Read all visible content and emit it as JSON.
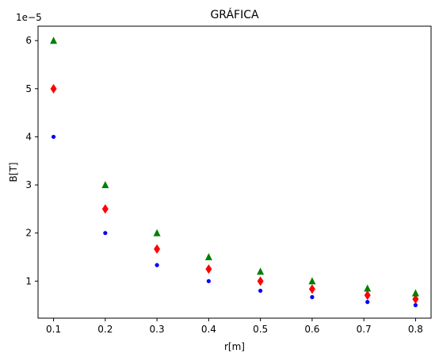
{
  "chart_data": {
    "type": "scatter",
    "title": "GRÁFICA",
    "xlabel": "r[m]",
    "ylabel": "B[T]",
    "y_offset_text": "1e−5",
    "y_scale_exponent": -5,
    "xlim": [
      0.07,
      0.83
    ],
    "ylim": [
      2.3e-06,
      6.3e-05
    ],
    "x_ticks": [
      0.1,
      0.2,
      0.3,
      0.4,
      0.5,
      0.6,
      0.7,
      0.8
    ],
    "x_tick_labels": [
      "0.1",
      "0.2",
      "0.3",
      "0.4",
      "0.5",
      "0.6",
      "0.7",
      "0.8"
    ],
    "y_ticks": [
      1e-05,
      2e-05,
      3e-05,
      4e-05,
      5e-05,
      6e-05
    ],
    "y_tick_labels": [
      "1",
      "2",
      "3",
      "4",
      "5",
      "6"
    ],
    "grid": false,
    "legend": "none",
    "series": [
      {
        "marker": "circle",
        "color": "#0000ff",
        "x": [
          0.1,
          0.2,
          0.3,
          0.4,
          0.5,
          0.6,
          0.707,
          0.8
        ],
        "values": [
          4e-05,
          2e-05,
          1.333e-05,
          1e-05,
          8e-06,
          6.667e-06,
          5.657e-06,
          5e-06
        ]
      },
      {
        "marker": "diamond",
        "color": "#ff0000",
        "x": [
          0.1,
          0.2,
          0.3,
          0.4,
          0.5,
          0.6,
          0.707,
          0.8
        ],
        "values": [
          5e-05,
          2.5e-05,
          1.667e-05,
          1.25e-05,
          1e-05,
          8.333e-06,
          7.071e-06,
          6.25e-06
        ]
      },
      {
        "marker": "triangle",
        "color": "#008000",
        "x": [
          0.1,
          0.2,
          0.3,
          0.4,
          0.5,
          0.6,
          0.707,
          0.8
        ],
        "values": [
          6e-05,
          3e-05,
          2e-05,
          1.5e-05,
          1.2e-05,
          1e-05,
          8.485e-06,
          7.5e-06
        ]
      }
    ]
  }
}
